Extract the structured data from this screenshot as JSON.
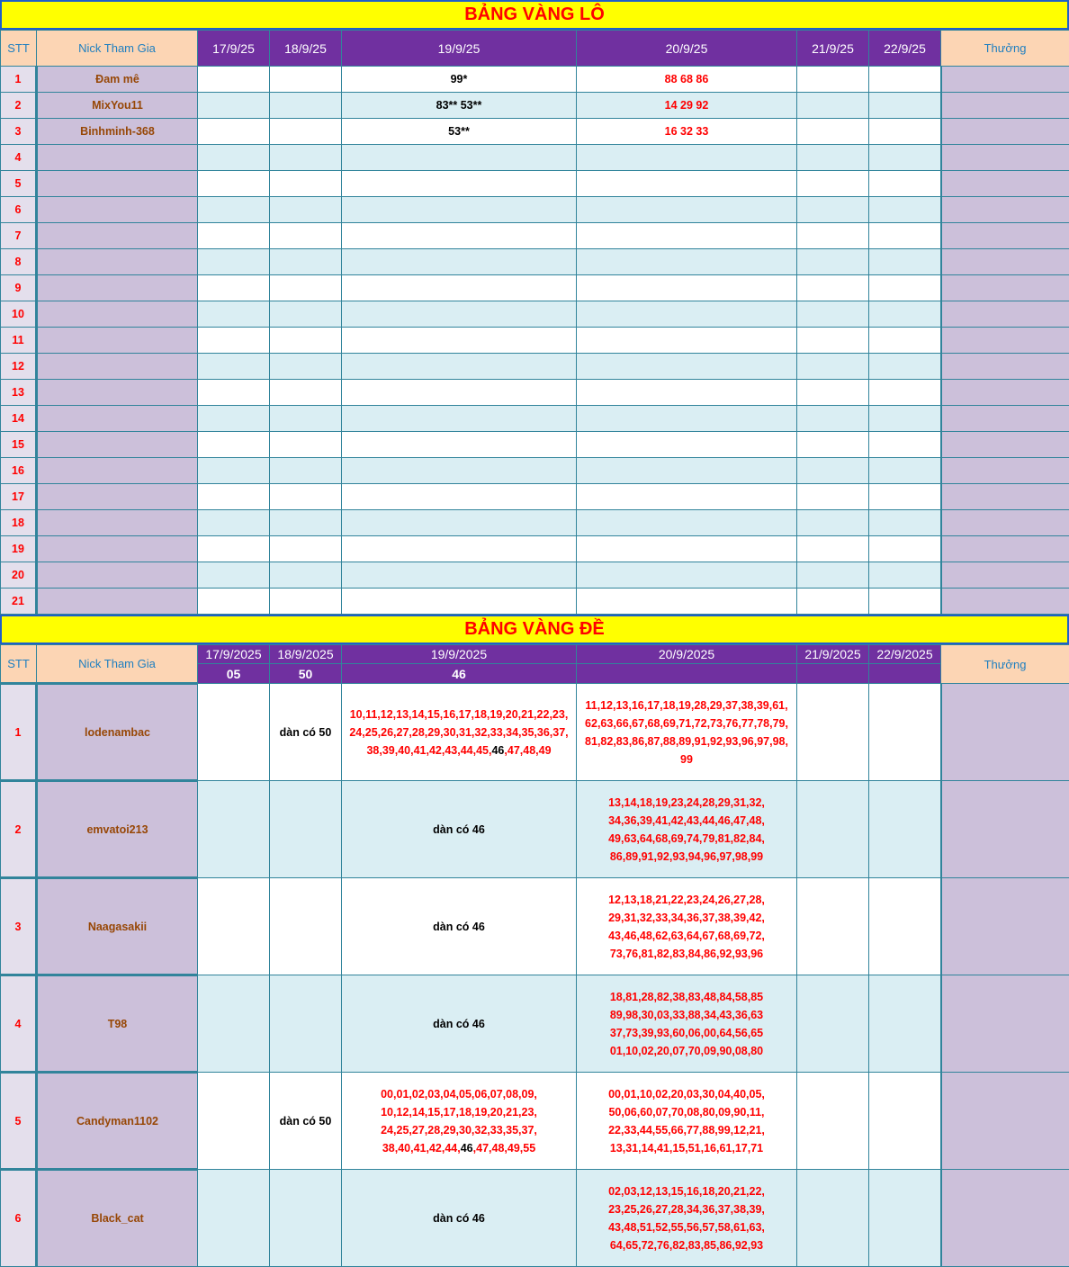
{
  "lo": {
    "title": "BẢNG VÀNG LÔ",
    "headers": {
      "stt": "STT",
      "nick": "Nick Tham Gia",
      "dates": [
        "17/9/25",
        "18/9/25",
        "19/9/25",
        "20/9/25",
        "21/9/25",
        "22/9/25"
      ],
      "reward": "Thưởng"
    },
    "rows": [
      {
        "stt": "1",
        "nick": "Đam mê",
        "d19": "99*",
        "d20": "88 68 86"
      },
      {
        "stt": "2",
        "nick": "MixYou11",
        "d19": "83** 53**",
        "d20": "14 29 92"
      },
      {
        "stt": "3",
        "nick": "Binhminh-368",
        "d19": "53**",
        "d20": "16 32 33"
      },
      {
        "stt": "4"
      },
      {
        "stt": "5"
      },
      {
        "stt": "6"
      },
      {
        "stt": "7"
      },
      {
        "stt": "8"
      },
      {
        "stt": "9"
      },
      {
        "stt": "10"
      },
      {
        "stt": "11"
      },
      {
        "stt": "12"
      },
      {
        "stt": "13"
      },
      {
        "stt": "14"
      },
      {
        "stt": "15"
      },
      {
        "stt": "16"
      },
      {
        "stt": "17"
      },
      {
        "stt": "18"
      },
      {
        "stt": "19"
      },
      {
        "stt": "20"
      },
      {
        "stt": "21"
      }
    ]
  },
  "de": {
    "title": "BẢNG VÀNG ĐỀ",
    "headers": {
      "stt": "STT",
      "nick": "Nick Tham Gia",
      "dates": [
        "17/9/2025",
        "18/9/2025",
        "19/9/2025",
        "20/9/2025",
        "21/9/2025",
        "22/9/2025"
      ],
      "results": [
        "05",
        "50",
        "46",
        "",
        "",
        ""
      ],
      "reward": "Thưởng"
    },
    "highlight": "46",
    "rows": [
      {
        "stt": "1",
        "nick": "lodenambac",
        "d18": "dàn có 50",
        "d19": "10,11,12,13,14,15,16,17,18,19,20,21,22,23,\n24,25,26,27,28,29,30,31,32,33,34,35,36,37,\n38,39,40,41,42,43,44,45,46,47,48,49",
        "d20": "11,12,13,16,17,18,19,28,29,37,38,39,61,\n62,63,66,67,68,69,71,72,73,76,77,78,79,\n81,82,83,86,87,88,89,91,92,93,96,97,98,\n99"
      },
      {
        "stt": "2",
        "nick": "emvatoi213",
        "d19": "dàn có 46",
        "d20": "13,14,18,19,23,24,28,29,31,32,\n34,36,39,41,42,43,44,46,47,48,\n49,63,64,68,69,74,79,81,82,84,\n86,89,91,92,93,94,96,97,98,99"
      },
      {
        "stt": "3",
        "nick": "Naagasakii",
        "d19": "dàn có 46",
        "d20": "12,13,18,21,22,23,24,26,27,28,\n29,31,32,33,34,36,37,38,39,42,\n43,46,48,62,63,64,67,68,69,72,\n73,76,81,82,83,84,86,92,93,96"
      },
      {
        "stt": "4",
        "nick": "T98",
        "d19": "dàn có 46",
        "d20": "18,81,28,82,38,83,48,84,58,85\n89,98,30,03,33,88,34,43,36,63\n37,73,39,93,60,06,00,64,56,65\n01,10,02,20,07,70,09,90,08,80"
      },
      {
        "stt": "5",
        "nick": "Candyman1102",
        "d18": "dàn có 50",
        "d19": "00,01,02,03,04,05,06,07,08,09,\n10,12,14,15,17,18,19,20,21,23,\n24,25,27,28,29,30,32,33,35,37,\n38,40,41,42,44,46,47,48,49,55",
        "d20": "00,01,10,02,20,03,30,04,40,05,\n50,06,60,07,70,08,80,09,90,11,\n22,33,44,55,66,77,88,99,12,21,\n13,31,14,41,15,51,16,61,17,71"
      },
      {
        "stt": "6",
        "nick": "Black_cat",
        "d19": "dàn có 46",
        "d20": "02,03,12,13,15,16,18,20,21,22,\n23,25,26,27,28,34,36,37,38,39,\n43,48,51,52,55,56,57,58,61,63,\n64,65,72,76,82,83,85,86,92,93"
      }
    ]
  }
}
